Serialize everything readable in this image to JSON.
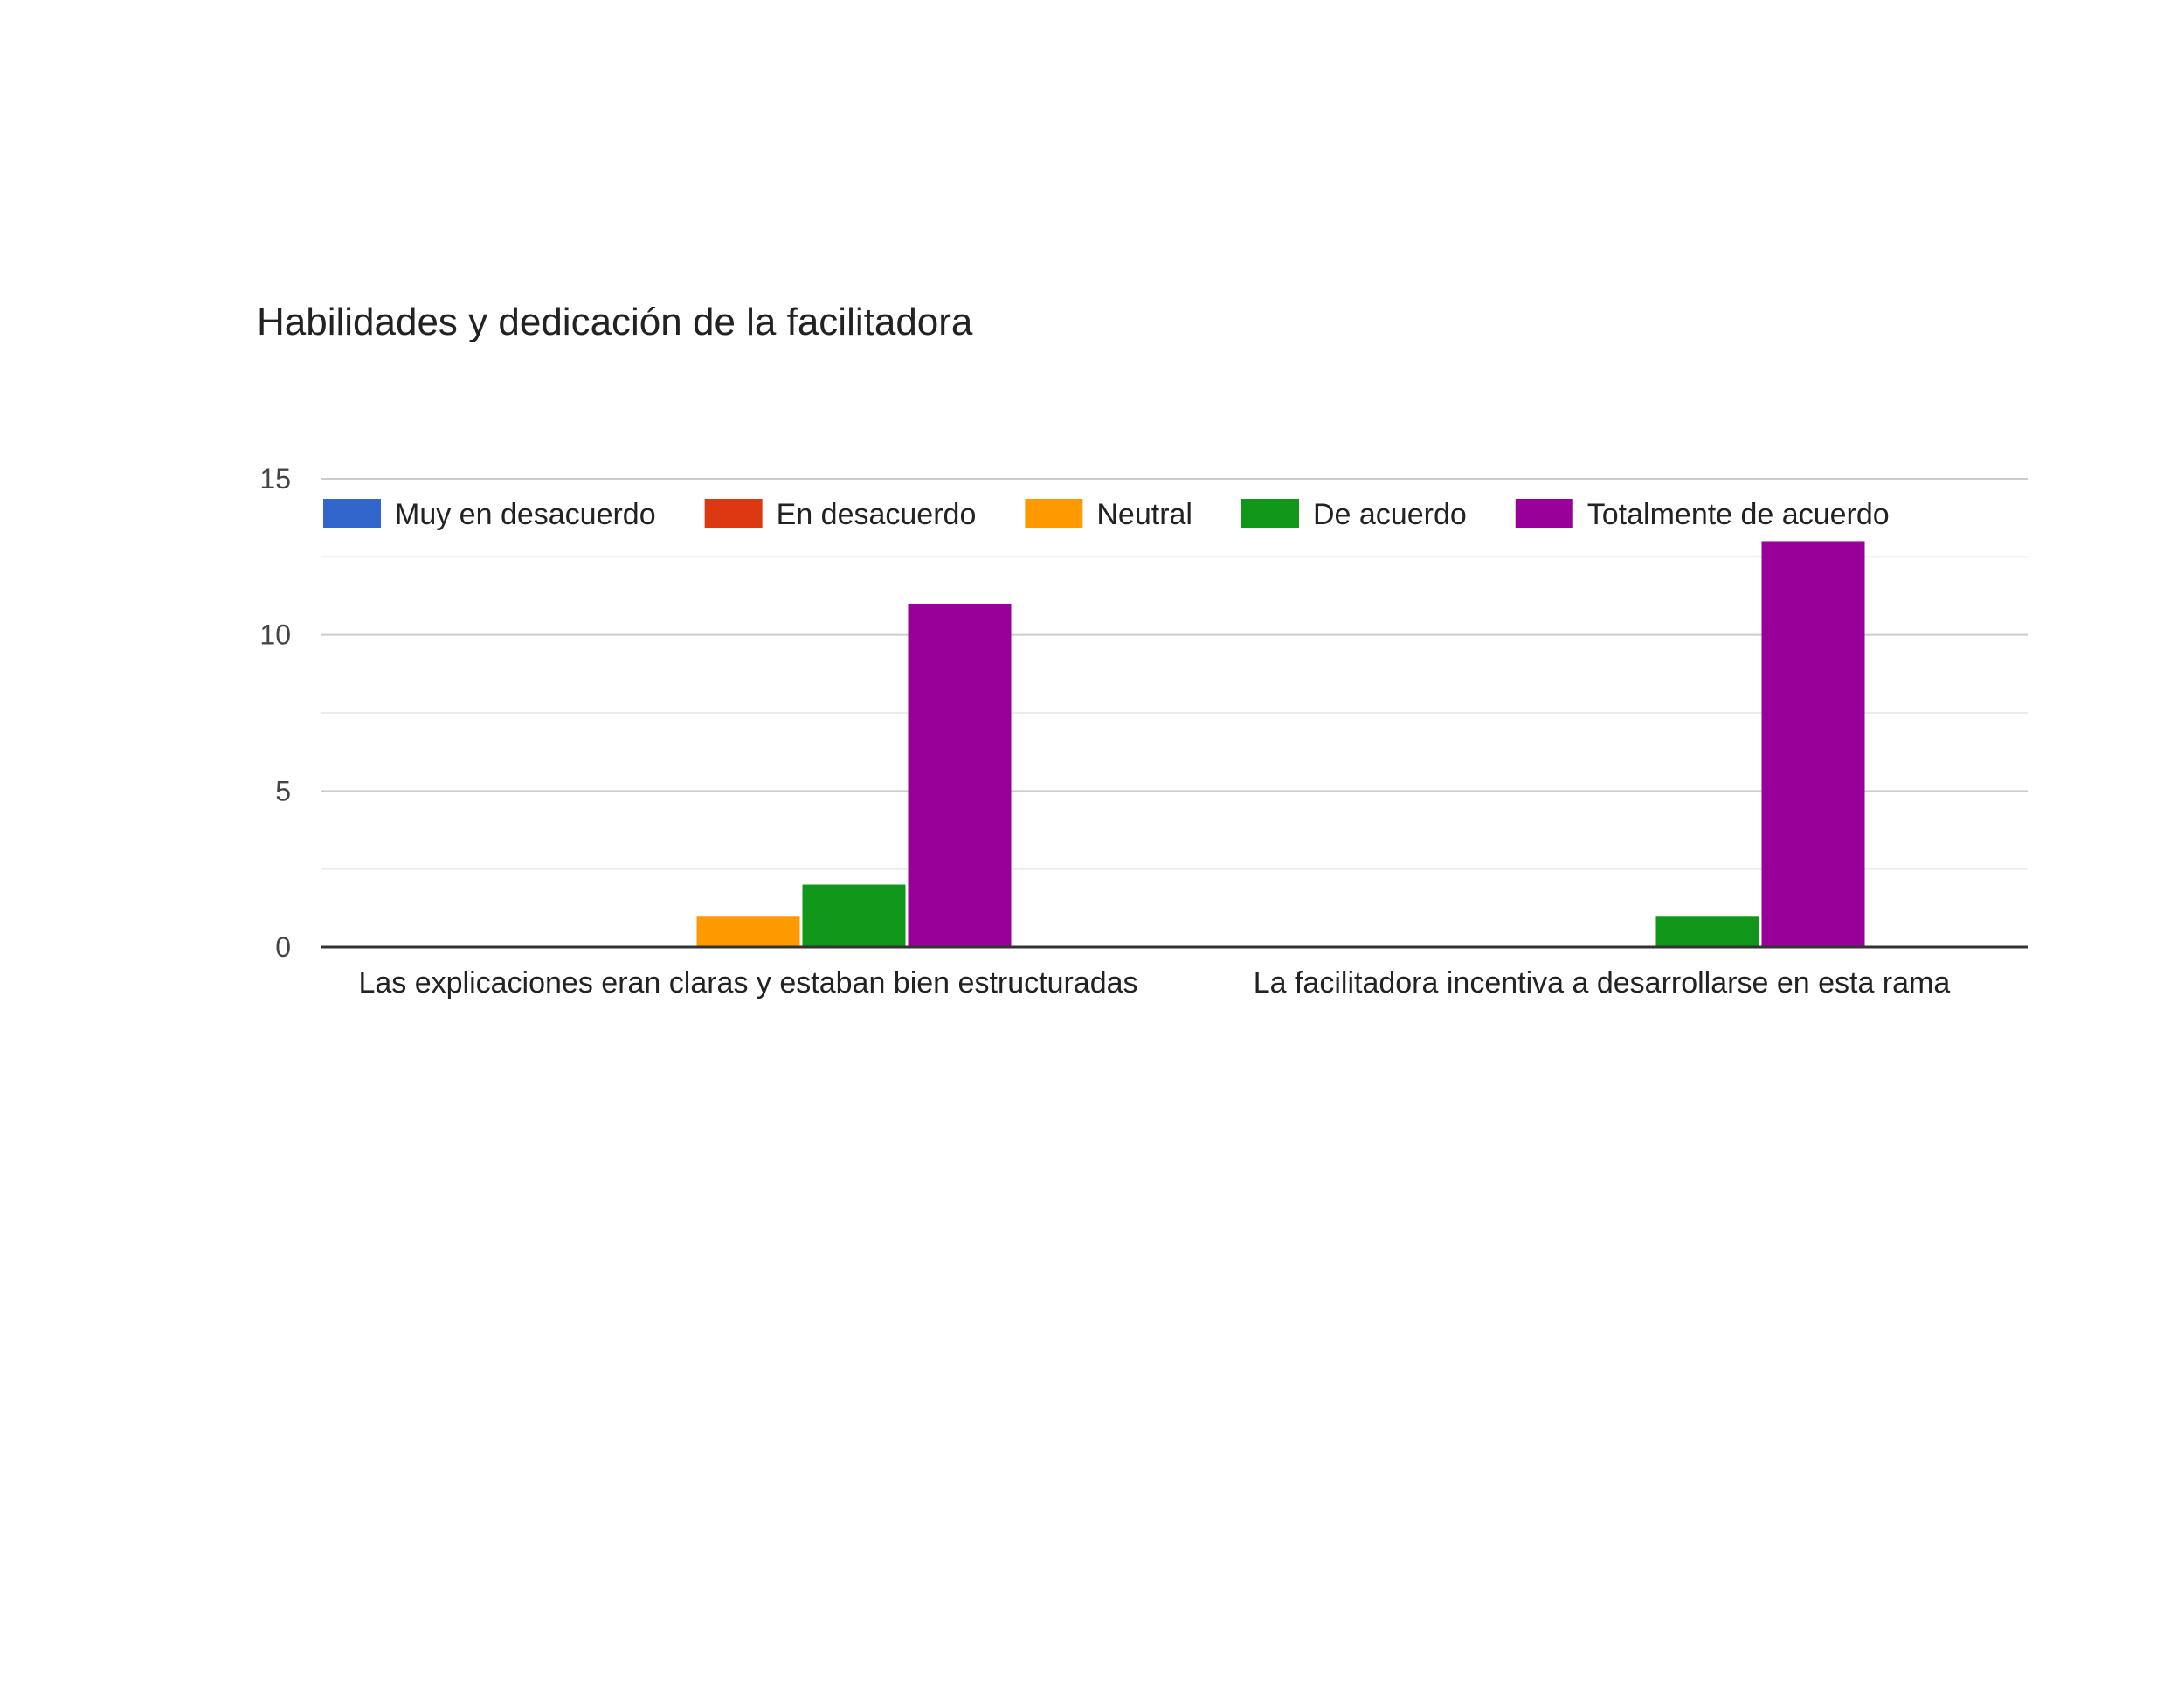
{
  "chart_data": {
    "type": "bar",
    "title": "Habilidades y dedicación de la facilitadora",
    "xlabel": "",
    "ylabel": "",
    "categories": [
      "Las explicaciones eran claras y estaban bien estructuradas",
      "La facilitadora incentiva a desarrollarse en esta rama"
    ],
    "series": [
      {
        "name": "Muy en desacuerdo",
        "color": "#3366cc",
        "values": [
          0,
          0
        ]
      },
      {
        "name": "En desacuerdo",
        "color": "#dc3912",
        "values": [
          0,
          0
        ]
      },
      {
        "name": "Neutral",
        "color": "#ff9900",
        "values": [
          1,
          0
        ]
      },
      {
        "name": "De acuerdo",
        "color": "#109618",
        "values": [
          2,
          1
        ]
      },
      {
        "name": "Totalmente de acuerdo",
        "color": "#990099",
        "values": [
          11,
          13
        ]
      }
    ],
    "ylim": [
      0,
      15
    ],
    "yticks": [
      0,
      5,
      10,
      15
    ],
    "grid": true,
    "legend_position": "top"
  }
}
